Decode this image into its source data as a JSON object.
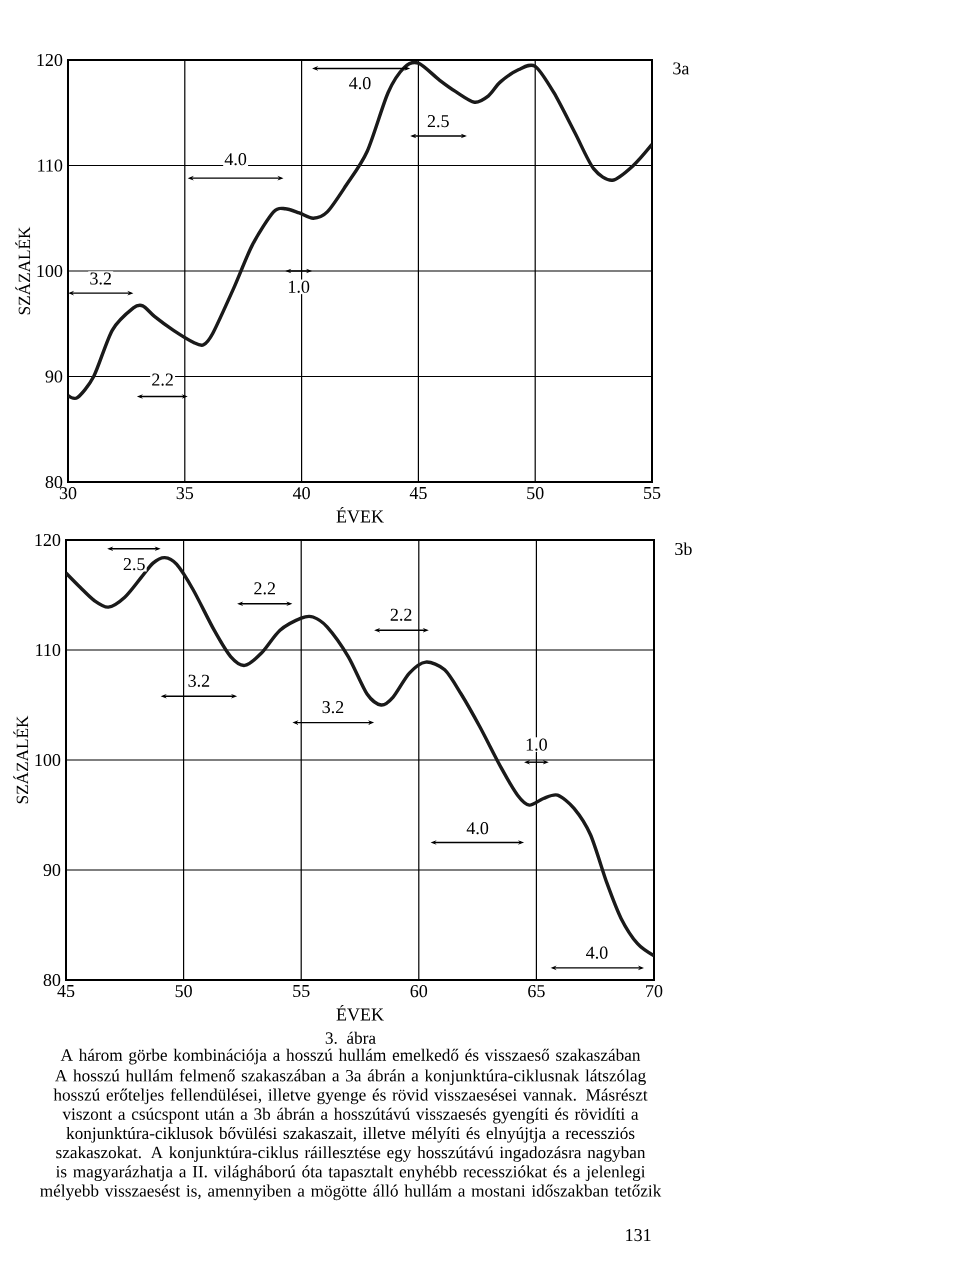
{
  "chart_data": [
    {
      "type": "line",
      "xlabel": "ÉVEK",
      "ylabel": "SZÁZALÉK",
      "color": "#1a1a1a",
      "grid": true,
      "xlim": [
        30,
        55
      ],
      "ylim": [
        80,
        120
      ],
      "xticks": [
        30,
        35,
        40,
        45,
        50,
        55
      ],
      "yticks": [
        80,
        90,
        100,
        110,
        120
      ],
      "x": [
        30,
        30.4,
        31.1,
        31.9,
        32.8,
        33.2,
        33.7,
        34.5,
        35.4,
        35.8,
        36.2,
        37.1,
        37.9,
        38.8,
        39.3,
        39.9,
        40.5,
        41.1,
        41.9,
        42.8,
        43.7,
        44.4,
        45.0,
        45.9,
        46.6,
        47.4,
        48.0,
        48.5,
        49.3,
        50.0,
        50.8,
        51.7,
        52.5,
        53.3,
        54.2,
        55
      ],
      "values": [
        88.2,
        88.0,
        90.0,
        94.4,
        96.5,
        96.7,
        95.7,
        94.4,
        93.2,
        93.0,
        94.1,
        98.4,
        102.5,
        105.6,
        105.9,
        105.5,
        105.0,
        105.6,
        108.1,
        111.3,
        116.9,
        119.3,
        119.7,
        118.1,
        117.0,
        116.0,
        116.6,
        117.9,
        119.1,
        119.4,
        116.9,
        113.1,
        109.7,
        108.6,
        110.0,
        112.0
      ],
      "annotations": [
        "3.2",
        "2.2",
        "4.0",
        "1.0",
        "4.0",
        "2.5",
        "3a"
      ]
    },
    {
      "type": "line",
      "xlabel": "ÉVEK",
      "ylabel": "SZÁZALÉK",
      "color": "#1a1a1a",
      "grid": true,
      "xlim": [
        45,
        70
      ],
      "ylim": [
        80,
        120
      ],
      "xticks": [
        45,
        50,
        55,
        60,
        65,
        70
      ],
      "yticks": [
        80,
        90,
        100,
        110,
        120
      ],
      "x": [
        45,
        45.6,
        46.2,
        46.8,
        47.5,
        48.2,
        48.7,
        49.2,
        49.7,
        50.4,
        51.3,
        52.0,
        52.6,
        53.3,
        54.1,
        55.0,
        55.5,
        56.1,
        57.0,
        57.8,
        58.4,
        58.9,
        59.6,
        60.3,
        61.1,
        61.8,
        62.6,
        63.5,
        64.2,
        64.7,
        65.3,
        65.9,
        66.6,
        67.3,
        68.0,
        68.6,
        69.3,
        70
      ],
      "values": [
        117.0,
        115.7,
        114.5,
        113.9,
        114.8,
        116.6,
        117.9,
        118.4,
        117.8,
        115.5,
        111.8,
        109.4,
        108.6,
        109.7,
        111.8,
        112.9,
        113.0,
        112.1,
        109.4,
        106.0,
        105.0,
        105.7,
        107.9,
        108.9,
        108.2,
        106.0,
        103.0,
        99.3,
        96.8,
        95.9,
        96.5,
        96.8,
        95.6,
        93.2,
        88.8,
        85.6,
        83.3,
        82.2
      ],
      "annotations": [
        "2.5",
        "3.2",
        "2.2",
        "3.2",
        "2.2",
        "4.0",
        "1.0",
        "4.0",
        "3b",
        "3. ábra",
        "A három görbe kombinációja a hosszú hullám emelkedő és visszaeső szakaszában",
        "A hosszú hullám felmenő szakaszában a 3a ábrán a konjunktúra-ciklusnak látszólag hosszú erőteljes fellendülései, illetve gyenge és rövid visszaesései vannak. Másrészt viszont a csúcspont után a 3b ábrán a hosszútávú visszaesés gyengíti és rövidíti a konjunktúra-ciklusok bővülési szakaszait, illetve mélyíti és elnyújtja a recessziós szakaszokat. A konjunktúra-ciklus ráillesztése egy hosszútávú ingadozásra nagyban is magyarázhatja a II. világháború óta tapasztalt enyhébb recessziókat és a jelenlegi mélyebb visszaesést is, amennyiben a mögötte álló hullám a mostani időszakban tetőzik",
        "131"
      ]
    }
  ]
}
